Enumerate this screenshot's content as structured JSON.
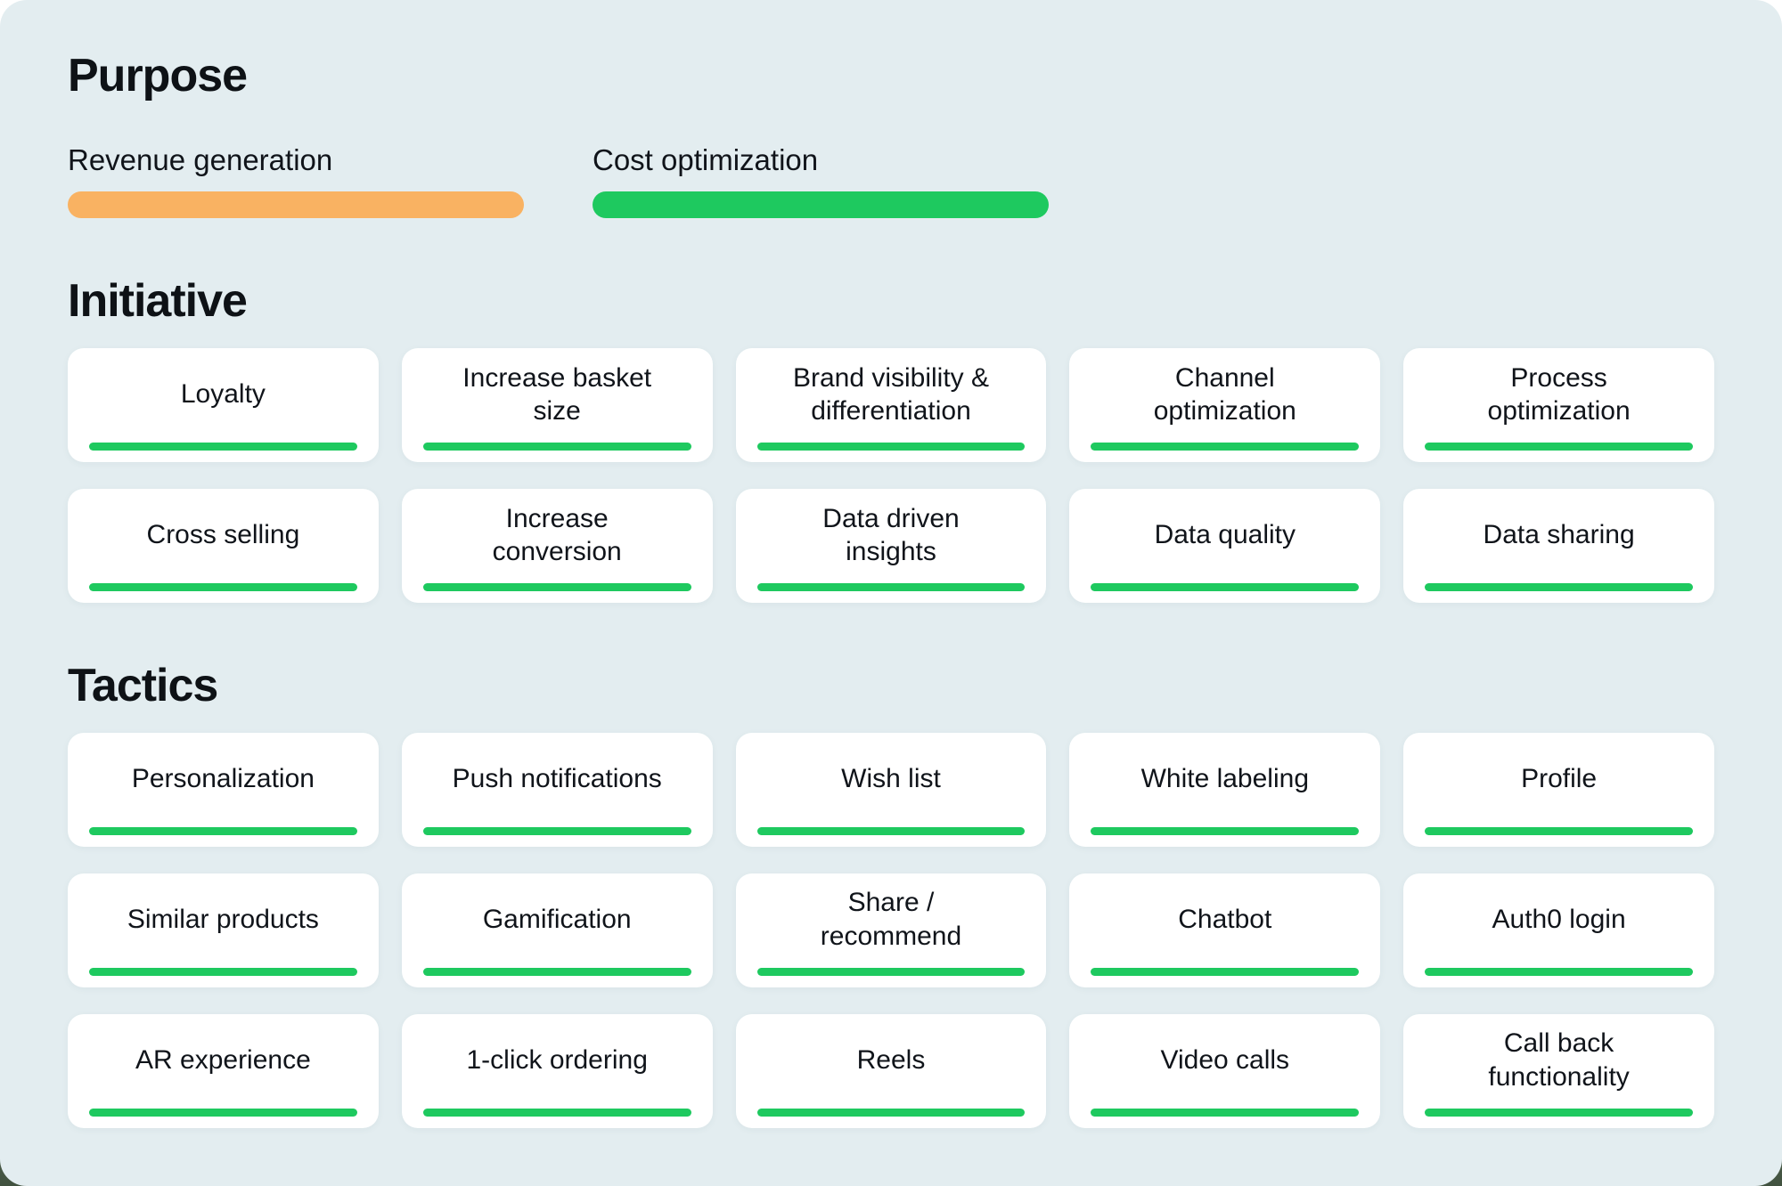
{
  "colors": {
    "panel_background": "#e3edf0",
    "card_background": "#ffffff",
    "green": "#1ec95f",
    "orange": "#f9b262",
    "text": "#10141a"
  },
  "purpose": {
    "title": "Purpose",
    "items": [
      {
        "label": "Revenue generation"
      },
      {
        "label": "Cost optimization"
      }
    ]
  },
  "initiative": {
    "title": "Initiative",
    "cards": [
      "Loyalty",
      "Increase basket\nsize",
      "Brand visibility &\ndifferentiation",
      "Channel\noptimization",
      "Process\noptimization",
      "Cross selling",
      "Increase\nconversion",
      "Data driven\ninsights",
      "Data quality",
      "Data sharing"
    ]
  },
  "tactics": {
    "title": "Tactics",
    "cards": [
      "Personalization",
      "Push notifications",
      "Wish list",
      "White labeling",
      "Profile",
      "Similar products",
      "Gamification",
      "Share /\nrecommend",
      "Chatbot",
      "Auth0 login",
      "AR experience",
      "1-click ordering",
      "Reels",
      "Video calls",
      "Call back\nfunctionality"
    ]
  }
}
